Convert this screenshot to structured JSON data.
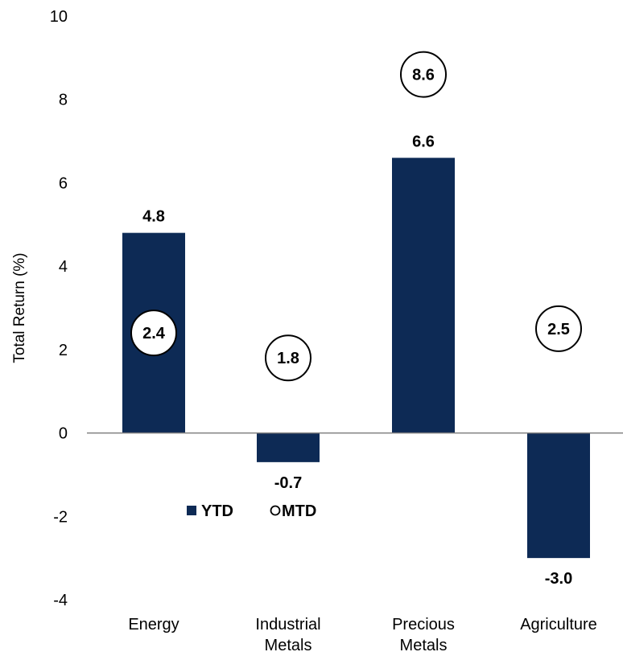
{
  "chart_data": {
    "type": "bar",
    "title": "",
    "xlabel": "",
    "ylabel": "Total Return (%)",
    "ylim": [
      -4,
      10
    ],
    "yticks": [
      10,
      8,
      6,
      4,
      2,
      0,
      -2,
      -4
    ],
    "categories": [
      [
        "Energy"
      ],
      [
        "Industrial",
        "Metals"
      ],
      [
        "Precious",
        "Metals"
      ],
      [
        "Agriculture"
      ]
    ],
    "series": [
      {
        "name": "YTD",
        "marker": "bar",
        "color": "#0d2a55",
        "values": [
          4.8,
          -0.7,
          6.6,
          -3.0
        ]
      },
      {
        "name": "MTD",
        "marker": "circle",
        "color": "#000000",
        "values": [
          2.4,
          1.8,
          8.6,
          2.5
        ]
      }
    ],
    "value_labels": {
      "YTD": [
        "4.8",
        "-0.7",
        "6.6",
        "-3.0"
      ],
      "MTD": [
        "2.4",
        "1.8",
        "8.6",
        "2.5"
      ]
    },
    "grid": false,
    "legend": {
      "position": "inside-lower-left",
      "items": [
        "YTD",
        "MTD"
      ]
    }
  }
}
